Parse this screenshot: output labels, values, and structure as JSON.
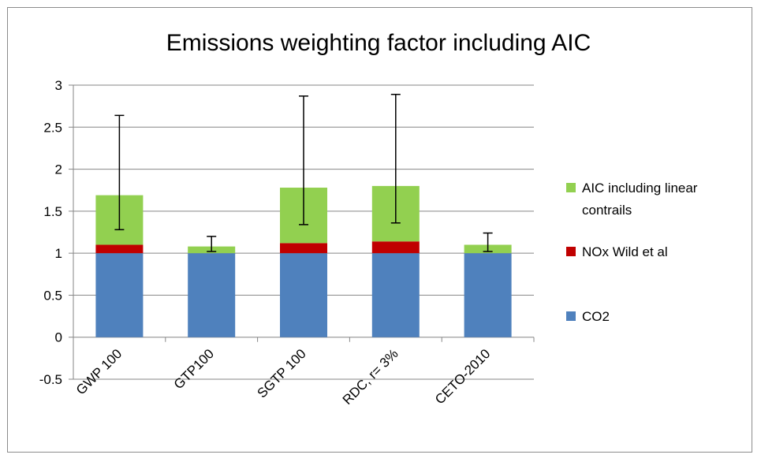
{
  "chart_data": {
    "type": "bar",
    "stacked": true,
    "title": "Emissions weighting factor including AIC",
    "xlabel": "",
    "ylabel": "",
    "ylim": [
      -0.5,
      3
    ],
    "y_ticks": [
      "-0.5",
      "0",
      "0.5",
      "1",
      "1.5",
      "2",
      "2.5",
      "3"
    ],
    "grid": true,
    "legend_position": "right",
    "categories": [
      "GWP 100",
      "GTP100",
      "SGTP 100",
      "RDC, r= 3%",
      "CETO-2010"
    ],
    "series": [
      {
        "name": "CO2",
        "color": "#4f81bd",
        "values": [
          1.0,
          1.0,
          1.0,
          1.0,
          1.0
        ]
      },
      {
        "name": "NOx Wild et al",
        "color": "#c00000",
        "values": [
          0.1,
          0.0,
          0.12,
          0.14,
          0.0
        ]
      },
      {
        "name": "AIC including linear contrails",
        "color": "#92d050",
        "values": [
          0.59,
          0.08,
          0.66,
          0.66,
          0.1
        ]
      }
    ],
    "error_bars": {
      "low": [
        1.28,
        1.02,
        1.34,
        1.36,
        1.02
      ],
      "high": [
        2.64,
        1.2,
        2.87,
        2.89,
        1.24
      ]
    },
    "legend_lines": {
      "aic": [
        "AIC including linear",
        "contrails"
      ],
      "nox": "NOx Wild et al",
      "co2": "CO2"
    }
  }
}
